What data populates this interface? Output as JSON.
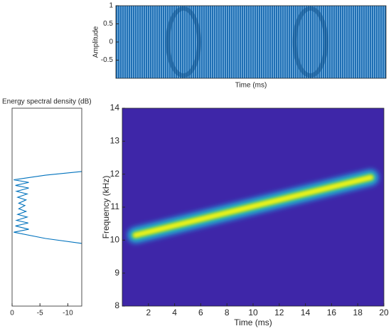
{
  "chart_data": [
    {
      "type": "area",
      "ylabel": "Amplitude",
      "xlabel": "Time (ms)",
      "xlim": [
        0,
        20
      ],
      "ylim": [
        -1,
        1
      ],
      "yticks": [
        -0.5,
        0,
        0.5,
        1
      ],
      "x": [
        0,
        20
      ],
      "upper": [
        1,
        1
      ],
      "lower": [
        -1,
        -1
      ],
      "color": "#1f6fb4"
    },
    {
      "type": "line",
      "title": "Energy spectral density (dB)",
      "xlim": [
        0,
        -12.5
      ],
      "ylim": [
        8,
        14
      ],
      "xticks": [
        0,
        -5,
        -10
      ],
      "color": "#0072bd",
      "x": [
        -12.5,
        -6,
        -0.3,
        -3.0,
        -0.6,
        -3.0,
        -0.8,
        -2.7,
        -1.0,
        -2.5,
        -1.2,
        -2.3,
        -1.2,
        -2.5,
        -1.0,
        -2.7,
        -0.8,
        -2.9,
        -0.6,
        -3.0,
        -0.3,
        -6,
        -12.5
      ],
      "y": [
        12.08,
        11.97,
        11.83,
        11.75,
        11.66,
        11.58,
        11.48,
        11.4,
        11.3,
        11.22,
        11.12,
        11.05,
        10.95,
        10.87,
        10.78,
        10.7,
        10.6,
        10.52,
        10.43,
        10.33,
        10.24,
        10.05,
        9.9
      ]
    },
    {
      "type": "heatmap",
      "xlabel": "Time (ms)",
      "ylabel": "Frequency (kHz)",
      "xlim": [
        0,
        20
      ],
      "ylim": [
        8,
        14
      ],
      "xticks": [
        2,
        4,
        6,
        8,
        10,
        12,
        14,
        16,
        18,
        20
      ],
      "yticks": [
        8,
        9,
        10,
        11,
        12,
        13,
        14
      ],
      "x": [
        1,
        19
      ],
      "y": [
        10.15,
        11.9
      ],
      "background": "#3e26a8",
      "color": "#f9fb0e"
    }
  ]
}
